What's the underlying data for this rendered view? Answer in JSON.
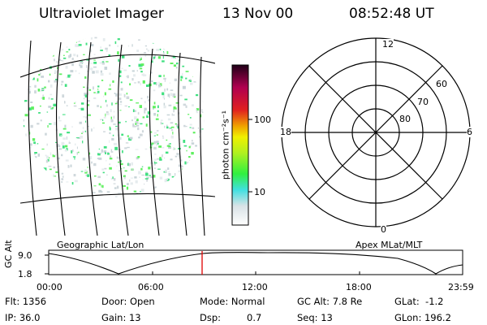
{
  "header": {
    "instrument": "Ultraviolet Imager",
    "date": "13 Nov 00",
    "time": "08:52:48 UT"
  },
  "colorbar": {
    "unit_label": "photon cm⁻²s⁻¹",
    "tick_100": "100",
    "tick_10": "10",
    "colors": [
      "#ffffff",
      "#e0e8ec",
      "#40e0e0",
      "#30f040",
      "#b0f020",
      "#f0f000",
      "#f0a000",
      "#e02020",
      "#b00050",
      "#300020"
    ]
  },
  "polar_plot": {
    "label_noon": "12",
    "label_midnight": "0",
    "label_dusk": "18",
    "label_dawn": "6",
    "label_60": "60",
    "label_70": "70",
    "label_80": "80"
  },
  "image_panel": {
    "dot_color": "#40e080",
    "grid_color": "#000000"
  },
  "labels": {
    "geo": "Geographic Lat/Lon",
    "apex": "Apex MLat/MLT"
  },
  "orbit_strip": {
    "axis_label": "GC Alt",
    "y_high": "9.0",
    "y_low": "1.8",
    "x_ticks": [
      "00:00",
      "06:00",
      "12:00",
      "18:00",
      "23:59"
    ],
    "current_time_marker_color": "#e00000"
  },
  "footer": {
    "flt": "Flt: 1356",
    "ip": "IP: 36.0",
    "door": "Door: Open",
    "gain": "Gain: 13",
    "mode": "Mode: Normal",
    "dsp_label": "Dsp:",
    "dsp_value": "0.7",
    "gc_alt": "GC Alt: 7.8 Re",
    "seq": "Seq: 13",
    "glat": "GLat:  -1.2",
    "glon": "GLon: 196.2"
  }
}
